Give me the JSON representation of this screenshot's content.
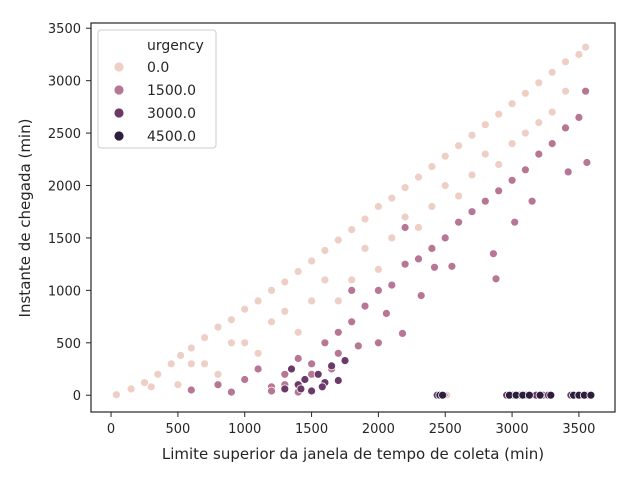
{
  "chart_data": {
    "type": "scatter",
    "xlabel": "Limite superior da janela de tempo de coleta (min)",
    "ylabel": "Instante de chegada (min)",
    "xlim": [
      -150,
      3770
    ],
    "ylim": [
      -160,
      3550
    ],
    "xticks": [
      0,
      500,
      1000,
      1500,
      2000,
      2500,
      3000,
      3500
    ],
    "yticks": [
      0,
      500,
      1000,
      1500,
      2000,
      2500,
      3000,
      3500
    ],
    "grid": false,
    "legend": {
      "title": "urgency",
      "placement": "top-left",
      "entries": [
        "0.0",
        "1500.0",
        "3000.0",
        "4500.0"
      ]
    },
    "series": [
      {
        "name": "0.0",
        "color": "#edcfc6",
        "points": [
          [
            40,
            5
          ],
          [
            150,
            60
          ],
          [
            250,
            120
          ],
          [
            350,
            200
          ],
          [
            450,
            300
          ],
          [
            520,
            380
          ],
          [
            600,
            450
          ],
          [
            700,
            550
          ],
          [
            800,
            650
          ],
          [
            900,
            720
          ],
          [
            1000,
            820
          ],
          [
            1100,
            900
          ],
          [
            1200,
            1000
          ],
          [
            1300,
            1080
          ],
          [
            1400,
            1180
          ],
          [
            1500,
            1280
          ],
          [
            1600,
            1380
          ],
          [
            1700,
            1480
          ],
          [
            1800,
            1580
          ],
          [
            1900,
            1680
          ],
          [
            2000,
            1800
          ],
          [
            2100,
            1880
          ],
          [
            2200,
            1980
          ],
          [
            2300,
            2080
          ],
          [
            2400,
            2180
          ],
          [
            2500,
            2280
          ],
          [
            2600,
            2380
          ],
          [
            2700,
            2480
          ],
          [
            2800,
            2580
          ],
          [
            2900,
            2680
          ],
          [
            3000,
            2780
          ],
          [
            3100,
            2880
          ],
          [
            3200,
            2980
          ],
          [
            3300,
            3080
          ],
          [
            3400,
            3180
          ],
          [
            3500,
            3250
          ],
          [
            3550,
            3320
          ],
          [
            600,
            300
          ],
          [
            900,
            500
          ],
          [
            1200,
            700
          ],
          [
            1500,
            900
          ],
          [
            1800,
            1100
          ],
          [
            2100,
            1500
          ],
          [
            2400,
            1800
          ],
          [
            2700,
            2100
          ],
          [
            3000,
            2400
          ],
          [
            3300,
            2700
          ],
          [
            800,
            200
          ],
          [
            1100,
            400
          ],
          [
            1400,
            600
          ],
          [
            1700,
            900
          ],
          [
            2000,
            1200
          ],
          [
            2300,
            1600
          ],
          [
            2600,
            1900
          ],
          [
            2900,
            2200
          ],
          [
            3200,
            2600
          ],
          [
            500,
            100
          ],
          [
            700,
            300
          ],
          [
            1000,
            500
          ],
          [
            1300,
            800
          ],
          [
            1600,
            1100
          ],
          [
            1900,
            1400
          ],
          [
            2200,
            1700
          ],
          [
            2500,
            2000
          ],
          [
            2800,
            2300
          ],
          [
            3100,
            2500
          ],
          [
            3400,
            2900
          ],
          [
            300,
            80
          ],
          [
            2450,
            0
          ],
          [
            2510,
            0
          ],
          [
            2980,
            0
          ],
          [
            3450,
            0
          ]
        ]
      },
      {
        "name": "1500.0",
        "color": "#b77694",
        "points": [
          [
            600,
            50
          ],
          [
            800,
            100
          ],
          [
            1000,
            150
          ],
          [
            1100,
            250
          ],
          [
            1200,
            80
          ],
          [
            1300,
            200
          ],
          [
            1400,
            350
          ],
          [
            1500,
            300
          ],
          [
            1600,
            500
          ],
          [
            1700,
            600
          ],
          [
            1800,
            700
          ],
          [
            1900,
            850
          ],
          [
            2000,
            1000
          ],
          [
            2100,
            1050
          ],
          [
            2200,
            1250
          ],
          [
            2300,
            1300
          ],
          [
            2400,
            1400
          ],
          [
            2500,
            1500
          ],
          [
            2600,
            1650
          ],
          [
            2700,
            1750
          ],
          [
            2800,
            1850
          ],
          [
            2900,
            1950
          ],
          [
            3000,
            2050
          ],
          [
            3100,
            2150
          ],
          [
            3200,
            2300
          ],
          [
            3300,
            2400
          ],
          [
            3400,
            2550
          ],
          [
            3500,
            2650
          ],
          [
            3550,
            2900
          ],
          [
            1700,
            400
          ],
          [
            1850,
            470
          ],
          [
            2060,
            780
          ],
          [
            2180,
            590
          ],
          [
            2320,
            950
          ],
          [
            2420,
            1220
          ],
          [
            2550,
            1230
          ],
          [
            2860,
            1350
          ],
          [
            2880,
            1110
          ],
          [
            3020,
            1650
          ],
          [
            3150,
            1850
          ],
          [
            3420,
            2130
          ],
          [
            3560,
            2220
          ],
          [
            1300,
            100
          ],
          [
            1500,
            200
          ],
          [
            1650,
            250
          ],
          [
            2000,
            500
          ],
          [
            1400,
            30
          ],
          [
            1200,
            40
          ],
          [
            900,
            30
          ],
          [
            1800,
            1000
          ],
          [
            2200,
            1600
          ]
        ]
      },
      {
        "name": "3000.0",
        "color": "#6b3a69",
        "points": [
          [
            1300,
            60
          ],
          [
            1400,
            100
          ],
          [
            1450,
            150
          ],
          [
            1500,
            40
          ],
          [
            1550,
            200
          ],
          [
            1600,
            120
          ],
          [
            1650,
            280
          ],
          [
            1700,
            140
          ],
          [
            1750,
            330
          ],
          [
            1350,
            250
          ],
          [
            1420,
            60
          ],
          [
            1580,
            80
          ],
          [
            2440,
            0
          ],
          [
            2470,
            0
          ],
          [
            2490,
            0
          ],
          [
            2960,
            0
          ],
          [
            3010,
            0
          ],
          [
            3060,
            0
          ],
          [
            3100,
            0
          ],
          [
            3140,
            0
          ],
          [
            3180,
            0
          ],
          [
            3230,
            0
          ],
          [
            3270,
            0
          ],
          [
            3440,
            0
          ],
          [
            3480,
            0
          ],
          [
            3520,
            0
          ],
          [
            3560,
            0
          ]
        ]
      },
      {
        "name": "4500.0",
        "color": "#2d1e3e",
        "points": [
          [
            2460,
            0
          ],
          [
            2480,
            0
          ],
          [
            2980,
            0
          ],
          [
            3030,
            0
          ],
          [
            3080,
            0
          ],
          [
            3130,
            0
          ],
          [
            3210,
            0
          ],
          [
            3290,
            0
          ],
          [
            3460,
            0
          ],
          [
            3500,
            0
          ],
          [
            3540,
            0
          ],
          [
            3590,
            0
          ]
        ]
      }
    ]
  }
}
